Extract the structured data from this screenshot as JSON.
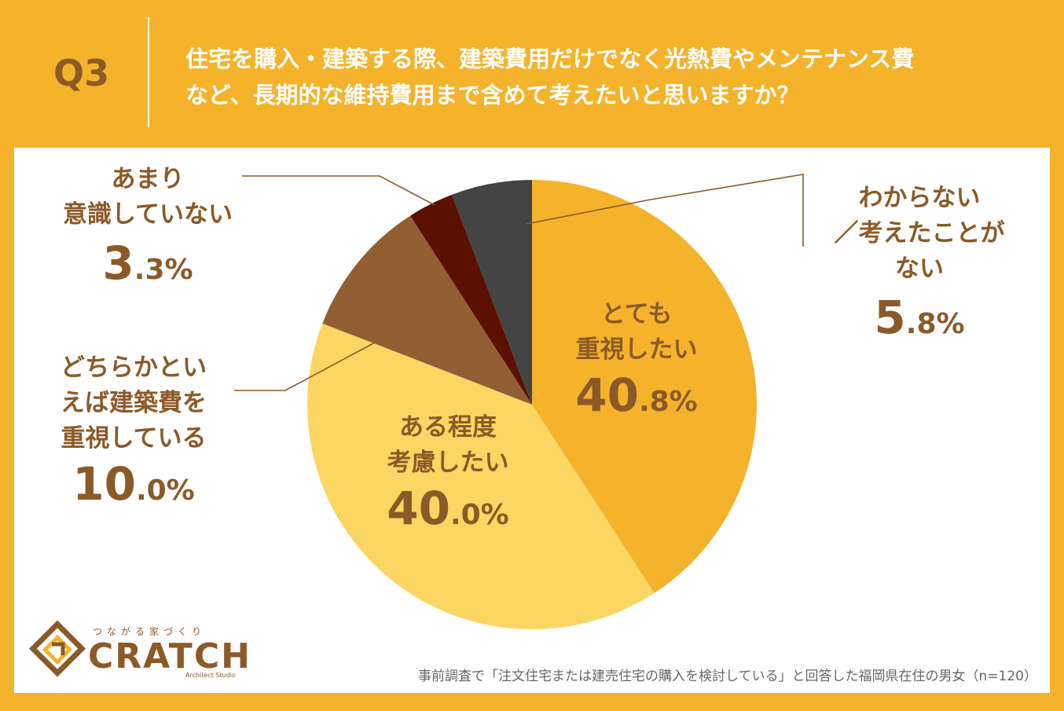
{
  "header": {
    "q_label": "Q3",
    "question_line1": "住宅を購入・建築する際、建築費用だけでなく光熱費やメンテナンス費",
    "question_line2": "など、長期的な維持費用まで含めて考えたいと思いますか？"
  },
  "chart_data": {
    "type": "pie",
    "slices": [
      {
        "label": "とても重視したい",
        "value": 40.8,
        "color": "#f4b32b"
      },
      {
        "label": "ある程度考慮したい",
        "value": 40.0,
        "color": "#fcd663"
      },
      {
        "label": "どちらかといえば建築費を重視している",
        "value": 10.0,
        "color": "#915f33"
      },
      {
        "label": "あまり意識していない",
        "value": 3.3,
        "color": "#5c1000"
      },
      {
        "label": "わからない／考えたことがない",
        "value": 5.8,
        "color": "#444444"
      }
    ]
  },
  "labels": {
    "s1_line1": "とても",
    "s1_line2": "重視したい",
    "s1_int": "40",
    "s1_dec": ".8%",
    "s2_line1": "ある程度",
    "s2_line2": "考慮したい",
    "s2_int": "40",
    "s2_dec": ".0%",
    "s3_line1": "どちらかとい",
    "s3_line2": "えば建築費を",
    "s3_line3": "重視している",
    "s3_int": "10",
    "s3_dec": ".0%",
    "s4_line1": "あまり",
    "s4_line2": "意識していない",
    "s4_int": "3",
    "s4_dec": ".3%",
    "s5_line1": "わからない",
    "s5_line2": "／考えたことが",
    "s5_line3": "ない",
    "s5_int": "5",
    "s5_dec": ".8%"
  },
  "logo": {
    "tagline": "つながる家づくり",
    "name": "CRATCH",
    "sub": "Architect Studio"
  },
  "footnote": "事前調査で「注文住宅または建売住宅の購入を検討している」と回答した福岡県在住の男女（n=120）",
  "colors": {
    "background": "#f4b32b",
    "text_brown": "#8c5a28"
  }
}
